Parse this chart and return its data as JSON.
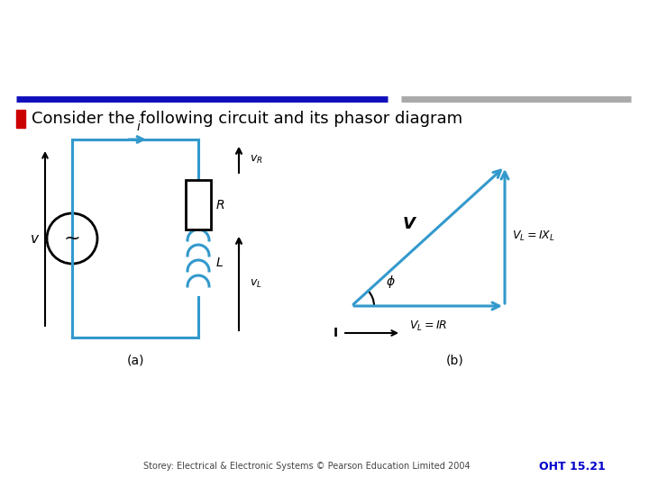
{
  "bg_color": "#ffffff",
  "title_text": "Consider the following circuit and its phasor diagram",
  "title_bullet_color": "#cc0000",
  "title_fontsize": 13,
  "circuit_color": "#3399cc",
  "circuit_lw": 2.2,
  "phasor_color": "#3399cc",
  "phasor_lw": 2.2,
  "footer_left": "Storey: Electrical & Electronic Systems © Pearson Education Limited 2004",
  "footer_right": "OHT 15.21",
  "footer_color_left": "#444444",
  "footer_color_right": "#0000cc",
  "header_bar_left_color": "#1111bb",
  "header_bar_right_color": "#aaaaaa",
  "label_fontsize": 10,
  "sublabel_fontsize": 9
}
